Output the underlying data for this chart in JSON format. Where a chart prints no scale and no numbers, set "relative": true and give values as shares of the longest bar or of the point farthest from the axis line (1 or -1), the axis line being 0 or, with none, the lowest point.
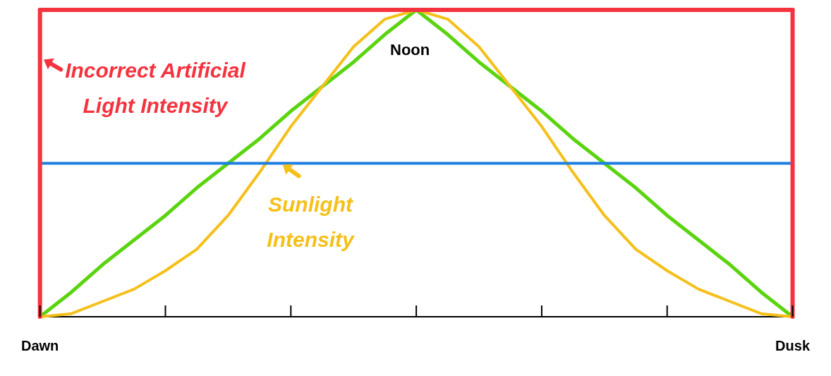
{
  "chart_data": {
    "type": "line",
    "relative": true,
    "categories": [
      "Dawn",
      null,
      null,
      null,
      null,
      null,
      null,
      null,
      null,
      null,
      null,
      null,
      null,
      null,
      null,
      null,
      null,
      null,
      null,
      null,
      null,
      null,
      null,
      null,
      "Dusk"
    ],
    "series": [
      {
        "name": "Incorrect Artificial Light Intensity",
        "color": "#f5333f",
        "values": [
          1,
          1,
          1,
          1,
          1,
          1,
          1,
          1,
          1,
          1,
          1,
          1,
          1,
          1,
          1,
          1,
          1,
          1,
          1,
          1,
          1,
          1,
          1,
          1,
          1
        ]
      },
      {
        "color": "#1f7fe0",
        "values": [
          0.5,
          0.5,
          0.5,
          0.5,
          0.5,
          0.5,
          0.5,
          0.5,
          0.5,
          0.5,
          0.5,
          0.5,
          0.5,
          0.5,
          0.5,
          0.5,
          0.5,
          0.5,
          0.5,
          0.5,
          0.5,
          0.5,
          0.5,
          0.5,
          0.5
        ]
      },
      {
        "name": "Sunlight Intensity",
        "color": "#f5c01a",
        "values": [
          0,
          0.01,
          0.05,
          0.09,
          0.15,
          0.22,
          0.33,
          0.47,
          0.62,
          0.75,
          0.88,
          0.97,
          1,
          0.97,
          0.88,
          0.75,
          0.62,
          0.47,
          0.33,
          0.22,
          0.15,
          0.09,
          0.05,
          0.01,
          0
        ]
      },
      {
        "color": "#5ad40f",
        "values": [
          0,
          0.08,
          0.17,
          0.25,
          0.33,
          0.42,
          0.5,
          0.58,
          0.67,
          0.75,
          0.83,
          0.92,
          1,
          0.92,
          0.83,
          0.75,
          0.67,
          0.58,
          0.5,
          0.42,
          0.33,
          0.25,
          0.17,
          0.08,
          0
        ]
      }
    ],
    "ref_lines": [
      {
        "axis": "x",
        "value": "Dawn",
        "color": "#f5333f"
      },
      {
        "axis": "x",
        "value": "Dusk",
        "color": "#f5333f"
      }
    ],
    "annotations": [
      "Noon"
    ],
    "legend": "top left",
    "grid": false,
    "marker": "none",
    "line_style": "solid"
  }
}
